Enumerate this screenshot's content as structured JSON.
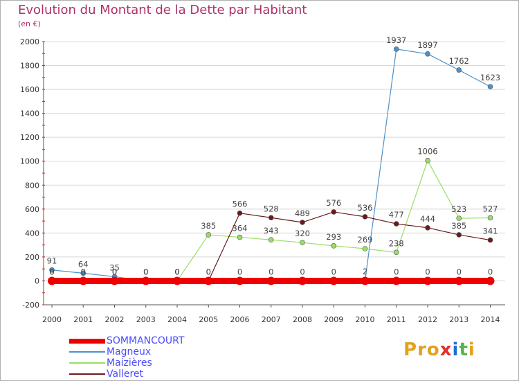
{
  "title": "Evolution du Montant de la Dette par Habitant",
  "subtitle": "(en €)",
  "logo": {
    "text": "Proxiti",
    "colors": [
      "#e2a21a",
      "#e2a21a",
      "#e2a21a",
      "#e03030",
      "#1f6fd0",
      "#56b34a",
      "#e2a21a"
    ]
  },
  "colors": {
    "title": "#b0306a",
    "legend_text": "#4a4aff",
    "grid": "#d8d8d8",
    "axis": "#555555"
  },
  "chart_data": {
    "type": "line",
    "title": "Evolution du Montant de la Dette par Habitant",
    "ylabel": "(en €)",
    "xlabel": "",
    "x": [
      "2000",
      "2001",
      "2002",
      "2003",
      "2004",
      "2005",
      "2006",
      "2007",
      "2008",
      "2009",
      "2010",
      "2011",
      "2012",
      "2013",
      "2014"
    ],
    "ylim": [
      -200,
      2000
    ],
    "yticks": [
      -200,
      0,
      200,
      400,
      600,
      800,
      1000,
      1200,
      1400,
      1600,
      1800,
      2000
    ],
    "grid": "horizontal",
    "legend_position": "bottom-left",
    "series": [
      {
        "name": "SOMMANCOURT",
        "color": "#ee0000",
        "width": 9,
        "values": [
          0,
          0,
          0,
          0,
          0,
          0,
          0,
          0,
          0,
          0,
          0,
          0,
          0,
          0,
          0
        ],
        "labels": [
          "",
          "",
          "",
          "",
          "",
          "",
          "",
          "",
          "",
          "",
          "",
          "0",
          "0",
          "0",
          "0"
        ]
      },
      {
        "name": "Magneux",
        "color": "#4d91c9",
        "width": 1.2,
        "values": [
          91,
          64,
          35,
          0,
          0,
          0,
          0,
          0,
          0,
          0,
          2,
          1937,
          1897,
          1762,
          1623
        ],
        "labels": [
          "91",
          "64",
          "35",
          "0",
          "0",
          "0",
          "0",
          "0",
          "0",
          "0",
          "2",
          "1937",
          "1897",
          "1762",
          "1623"
        ]
      },
      {
        "name": "Maizières",
        "color": "#99dd66",
        "width": 1.2,
        "values": [
          0,
          0,
          0,
          0,
          0,
          385,
          364,
          343,
          320,
          293,
          269,
          238,
          1006,
          523,
          527
        ],
        "labels": [
          "0",
          "0",
          "0",
          "0",
          "0",
          "385",
          "364",
          "343",
          "320",
          "293",
          "269",
          "238",
          "1006",
          "523",
          "527"
        ]
      },
      {
        "name": "Valleret",
        "color": "#6b1a1a",
        "width": 1.2,
        "values": [
          0,
          0,
          0,
          0,
          0,
          0,
          566,
          528,
          489,
          576,
          536,
          477,
          444,
          385,
          341
        ],
        "labels": [
          "0",
          "0",
          "0",
          "0",
          "0",
          "0",
          "566",
          "528",
          "489",
          "576",
          "536",
          "477",
          "444",
          "385",
          "341"
        ]
      }
    ]
  }
}
